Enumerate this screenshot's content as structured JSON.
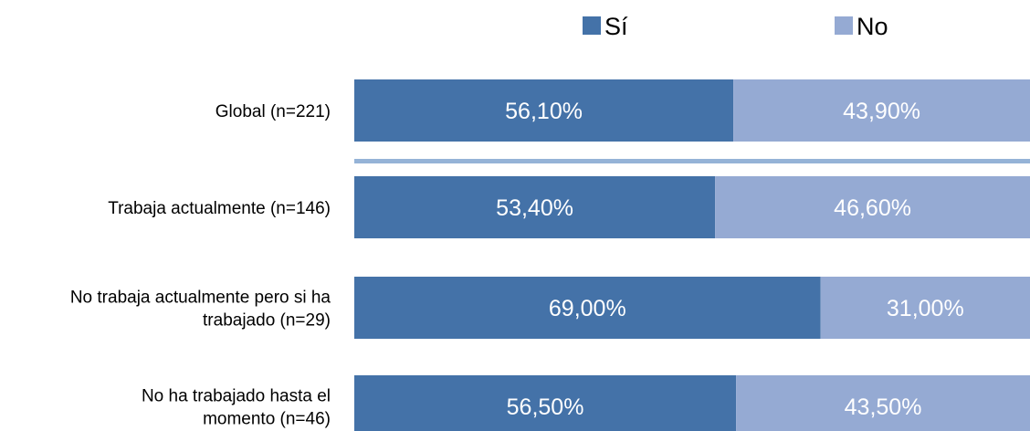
{
  "chart_data": {
    "type": "bar",
    "orientation": "horizontal",
    "stacked": true,
    "percent_stacked": true,
    "categories": [
      [
        "Global (n=221)"
      ],
      [
        "Trabaja actualmente (n=146)"
      ],
      [
        "No trabaja actualmente pero si ha",
        "trabajado (n=29)"
      ],
      [
        "No ha trabajado hasta el",
        "momento (n=46)"
      ]
    ],
    "series": [
      {
        "name": "Sí",
        "color": "#4472a8",
        "values": [
          56.1,
          53.4,
          69.0,
          56.5
        ],
        "labels": [
          "56,10%",
          "53,40%",
          "69,00%",
          "56,50%"
        ]
      },
      {
        "name": "No",
        "color": "#95aad3",
        "values": [
          43.9,
          46.6,
          31.0,
          43.5
        ],
        "labels": [
          "43,90%",
          "46,60%",
          "31,00%",
          "43,50%"
        ]
      }
    ],
    "xlim": [
      0,
      100
    ],
    "grid": false,
    "legend": "top",
    "separator_after_first": true,
    "separator_color": "#95b3d7"
  }
}
